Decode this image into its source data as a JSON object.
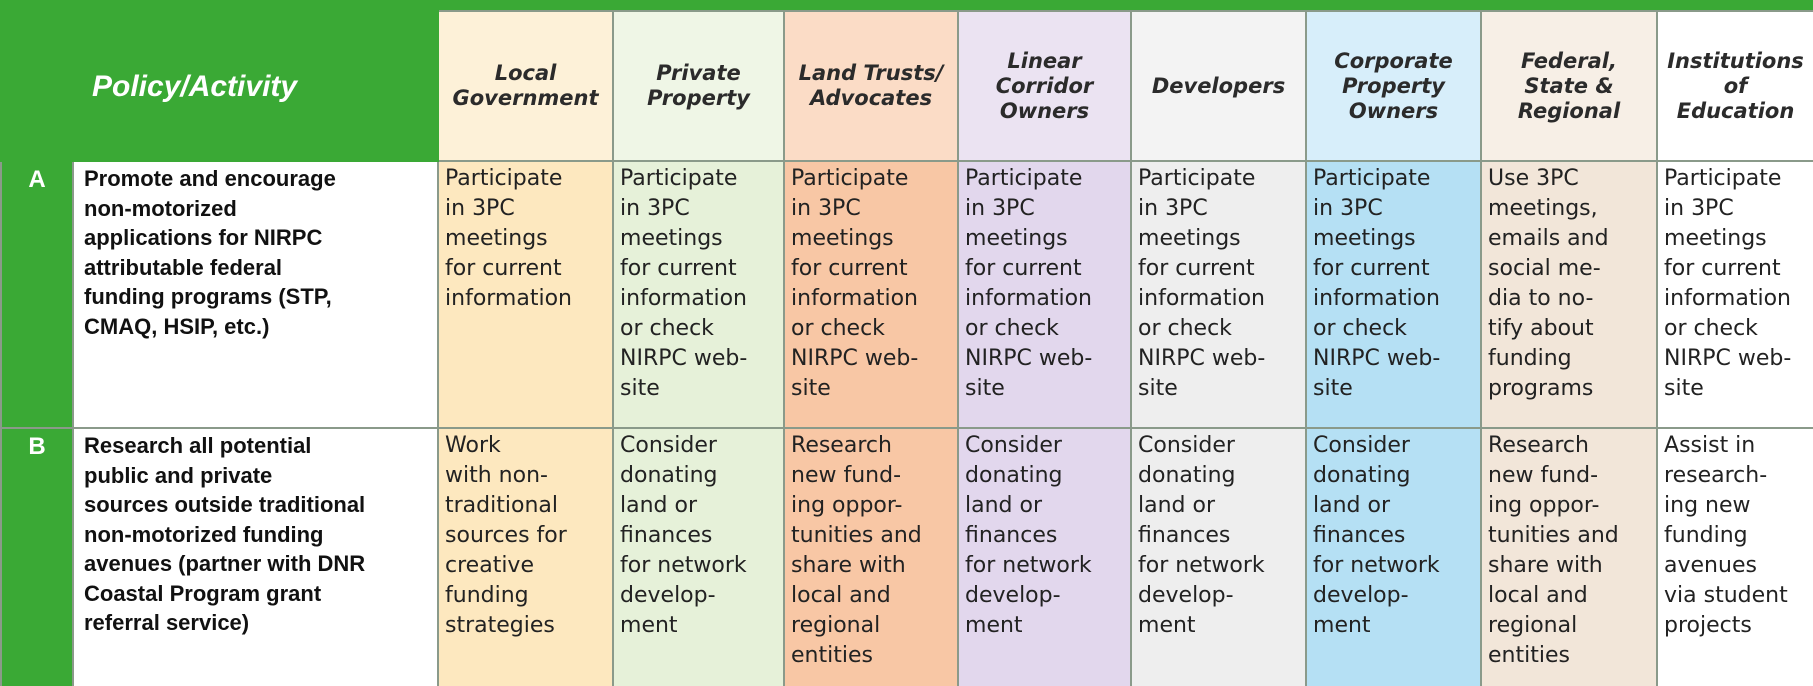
{
  "header": {
    "title": "Policy/Activity",
    "columns": [
      [
        "Local",
        "Government"
      ],
      [
        "Private",
        "Property"
      ],
      [
        "Land Trusts/",
        "Advocates"
      ],
      [
        "Linear",
        "Corridor",
        "Owners"
      ],
      [
        "Developers"
      ],
      [
        "Corporate",
        "Property",
        "Owners"
      ],
      [
        "Federal,",
        "State &",
        "Regional"
      ],
      [
        "Institutions",
        "of",
        "Education"
      ]
    ]
  },
  "rows": [
    {
      "letter": "A",
      "policy": [
        "Promote and encourage",
        "non-motorized",
        "applications for NIRPC",
        "attributable federal",
        "funding programs (STP,",
        "CMAQ, HSIP, etc.)"
      ],
      "cells": [
        [
          "Participate",
          "in 3PC",
          "meetings",
          "for current",
          "information"
        ],
        [
          "Participate",
          "in 3PC",
          "meetings",
          "for current",
          "information",
          "or check",
          "NIRPC web-",
          "site"
        ],
        [
          "Participate",
          "in 3PC",
          "meetings",
          "for current",
          "information",
          "or check",
          "NIRPC web-",
          "site"
        ],
        [
          "Participate",
          "in 3PC",
          "meetings",
          "for current",
          "information",
          "or check",
          "NIRPC web-",
          "site"
        ],
        [
          "Participate",
          "in 3PC",
          "meetings",
          "for current",
          "information",
          "or check",
          "NIRPC web-",
          "site"
        ],
        [
          "Participate",
          "in 3PC",
          "meetings",
          "for current",
          "information",
          "or check",
          "NIRPC web-",
          "site"
        ],
        [
          "Use 3PC",
          "meetings,",
          "emails and",
          "social me-",
          "dia to no-",
          "tify about",
          "funding",
          "programs"
        ],
        [
          "Participate",
          "in 3PC",
          "meetings",
          "for current",
          "information",
          "or check",
          "NIRPC web-",
          "site"
        ]
      ]
    },
    {
      "letter": "B",
      "policy": [
        "Research all potential",
        "public and private",
        "sources outside traditional",
        "non-motorized funding",
        "avenues (partner with DNR",
        "Coastal Program grant",
        "referral service)"
      ],
      "cells": [
        [
          "Work",
          "with non-",
          "traditional",
          "sources for",
          "creative",
          "funding",
          "strategies"
        ],
        [
          "Consider",
          "donating",
          "land or",
          "finances",
          "for network",
          "develop-",
          "ment"
        ],
        [
          "Research",
          "new fund-",
          "ing oppor-",
          "tunities and",
          "share with",
          "local and",
          "regional",
          "entities"
        ],
        [
          "Consider",
          "donating",
          "land or",
          "finances",
          "for network",
          "develop-",
          "ment"
        ],
        [
          "Consider",
          "donating",
          "land or",
          "finances",
          "for network",
          "develop-",
          "ment"
        ],
        [
          "Consider",
          "donating",
          "land or",
          "finances",
          "for network",
          "develop-",
          "ment"
        ],
        [
          "Research",
          "new fund-",
          "ing oppor-",
          "tunities and",
          "share with",
          "local and",
          "regional",
          "entities"
        ],
        [
          "Assist in",
          "research-",
          "ing new",
          "funding",
          "avenues",
          "via student",
          "projects"
        ]
      ]
    }
  ]
}
